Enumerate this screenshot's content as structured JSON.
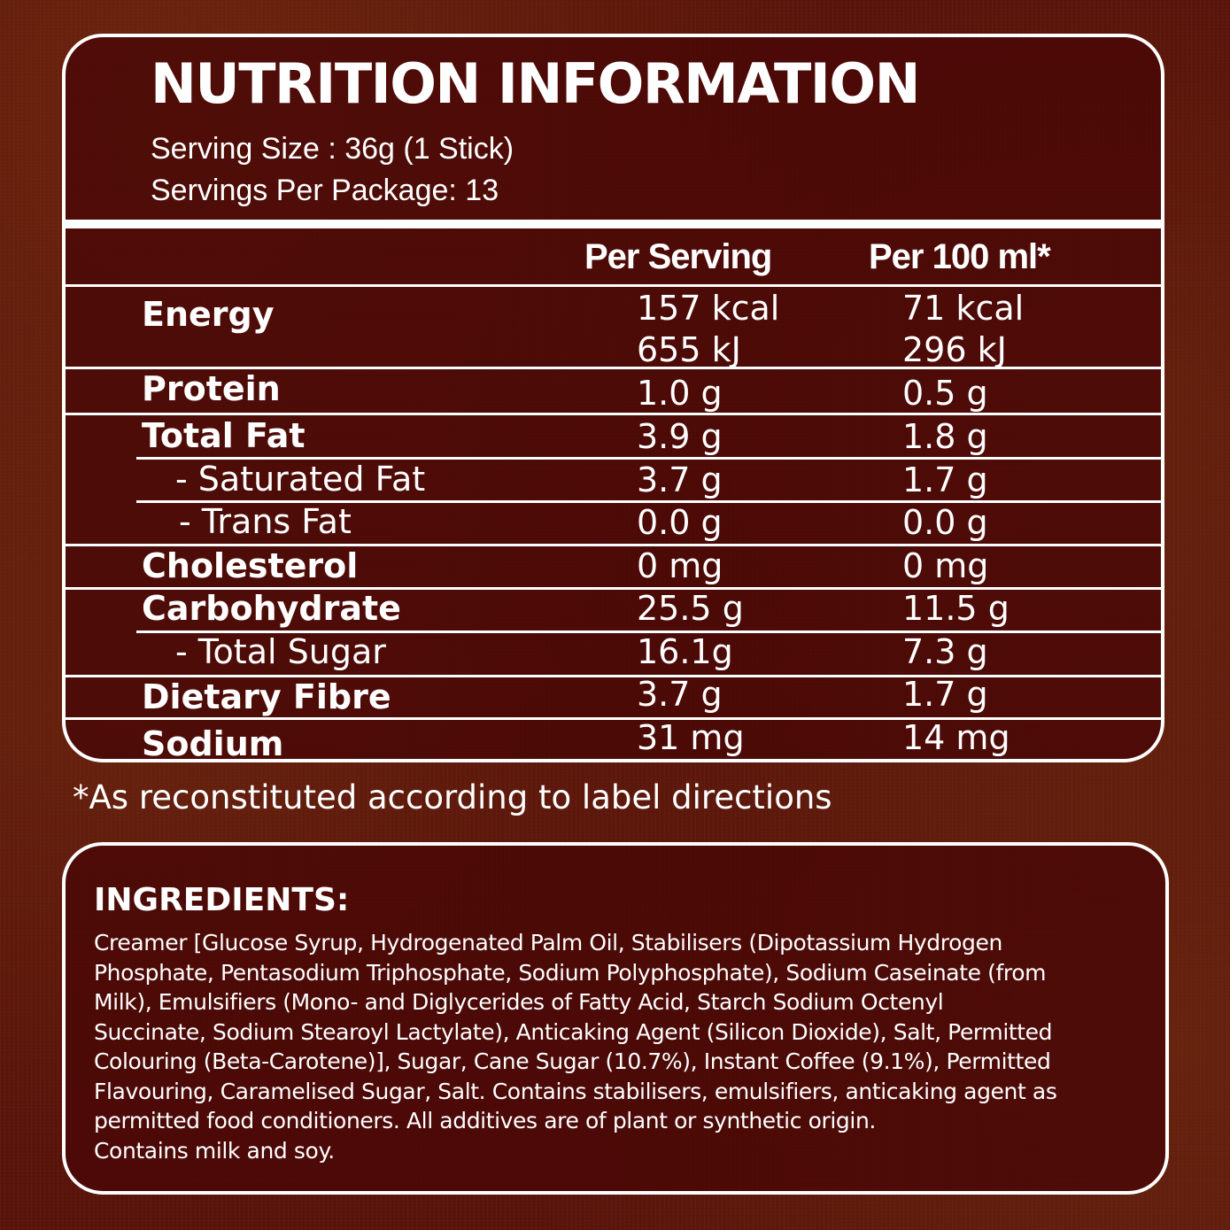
{
  "nutrition": {
    "title": "NUTRITION INFORMATION",
    "serving_size": "Serving Size : 36g (1 Stick)",
    "servings_per_package": "Servings Per Package: 13",
    "columns": {
      "per_serving": "Per Serving",
      "per_100": "Per 100 ml*"
    },
    "rows": [
      {
        "label": "Energy",
        "per_serving": [
          "157 kcal",
          "655 kJ"
        ],
        "per_100": [
          "71 kcal",
          "296 kJ"
        ]
      },
      {
        "label": "Protein",
        "per_serving": "1.0 g",
        "per_100": "0.5 g"
      },
      {
        "label": "Total Fat",
        "per_serving": "3.9 g",
        "per_100": "1.8 g"
      },
      {
        "label": "- Saturated Fat",
        "per_serving": "3.7 g",
        "per_100": "1.7 g"
      },
      {
        "label": "- Trans Fat",
        "per_serving": "0.0 g",
        "per_100": "0.0 g"
      },
      {
        "label": "Cholesterol",
        "per_serving": "0 mg",
        "per_100": "0 mg"
      },
      {
        "label": "Carbohydrate",
        "per_serving": "25.5 g",
        "per_100": "11.5 g"
      },
      {
        "label": "- Total Sugar",
        "per_serving": "16.1g",
        "per_100": "7.3 g"
      },
      {
        "label": "Dietary Fibre",
        "per_serving": "3.7 g",
        "per_100": "1.7 g"
      },
      {
        "label": "Sodium",
        "per_serving": "31 mg",
        "per_100": "14 mg"
      }
    ]
  },
  "footnote": "*As reconstituted according to label directions",
  "ingredients": {
    "title": "INGREDIENTS:",
    "lines": [
      "Creamer [Glucose Syrup, Hydrogenated Palm Oil, Stabilisers (Dipotassium Hydrogen",
      "Phosphate, Pentasodium Triphosphate, Sodium Polyphosphate), Sodium Caseinate (from",
      "Milk), Emulsifiers (Mono- and Diglycerides of Fatty Acid, Starch Sodium Octenyl",
      "Succinate, Sodium Stearoyl Lactylate), Anticaking Agent (Silicon Dioxide), Salt, Permitted",
      "Colouring (Beta-Carotene)], Sugar, Cane Sugar (10.7%), Instant Coffee (9.1%), Permitted",
      "Flavouring, Caramelised Sugar, Salt. Contains stabilisers, emulsifiers, anticaking agent as",
      "permitted food conditioners. All additives are of plant or synthetic origin.",
      "Contains milk and soy."
    ]
  },
  "colors": {
    "background": "#5a140b",
    "panel": "#480606",
    "text": "#ffffff"
  }
}
